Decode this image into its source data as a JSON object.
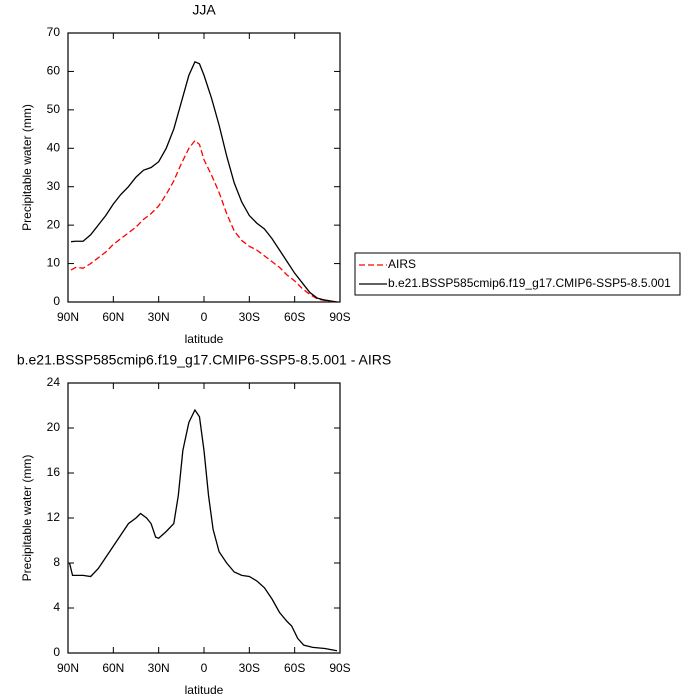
{
  "chart_data": [
    {
      "type": "line",
      "title": "JJA",
      "xlabel": "latitude",
      "ylabel": "Precipitable water (mm)",
      "x": [
        88,
        85,
        80,
        75,
        70,
        65,
        60,
        55,
        50,
        45,
        40,
        35,
        30,
        25,
        20,
        15,
        10,
        6,
        3,
        0,
        -5,
        -10,
        -15,
        -20,
        -25,
        -30,
        -35,
        -40,
        -45,
        -50,
        -55,
        -60,
        -65,
        -70,
        -75,
        -80,
        -85,
        -88
      ],
      "series": [
        {
          "name": "AIRS",
          "color": "#ff0000",
          "dash": "dashed",
          "values": [
            8.3,
            9,
            8.8,
            10,
            11.5,
            13,
            15,
            16.5,
            18,
            19.5,
            21.5,
            23,
            25,
            28,
            31.5,
            36,
            40,
            42,
            41,
            37,
            33,
            28.5,
            23,
            18.5,
            16,
            14.5,
            13.5,
            12,
            10.5,
            9,
            7,
            5.5,
            3.5,
            2,
            0.8,
            0.4,
            0.1,
            0
          ]
        },
        {
          "name": "b.e21.BSSP585cmip6.f19_g17.CMIP6-SSP5-8.5.001",
          "color": "#000000",
          "dash": "solid",
          "values": [
            15.7,
            15.8,
            15.8,
            17.5,
            20,
            22.5,
            25.5,
            28,
            30,
            32.5,
            34.3,
            35,
            36.5,
            40,
            45,
            52,
            59,
            62.5,
            62,
            59,
            53,
            46,
            38,
            31,
            26,
            22.5,
            20.5,
            19,
            16.5,
            13.5,
            10.5,
            7.5,
            5,
            2.5,
            1,
            0.5,
            0.2,
            0
          ]
        }
      ],
      "xlim": [
        90,
        -90
      ],
      "xticks": [
        {
          "value": 90,
          "label": "90N"
        },
        {
          "value": 60,
          "label": "60N"
        },
        {
          "value": 30,
          "label": "30N"
        },
        0,
        {
          "value": -30,
          "label": "30S"
        },
        {
          "value": -60,
          "label": "60S"
        },
        {
          "value": -90,
          "label": "90S"
        }
      ],
      "ylim": [
        0,
        70
      ],
      "yticks": [
        0,
        10,
        20,
        30,
        40,
        50,
        60,
        70
      ],
      "legend": "right"
    },
    {
      "type": "line",
      "title": "b.e21.BSSP585cmip6.f19_g17.CMIP6-SSP5-8.5.001 - AIRS",
      "xlabel": "latitude",
      "ylabel": "Precipitable water (mm)",
      "x": [
        89,
        87,
        80,
        75,
        70,
        65,
        60,
        55,
        50,
        45,
        42,
        38,
        35,
        32,
        30,
        25,
        20,
        17,
        14,
        10,
        6,
        3,
        0,
        -3,
        -6,
        -10,
        -15,
        -20,
        -25,
        -30,
        -35,
        -40,
        -45,
        -50,
        -55,
        -58,
        -62,
        -66,
        -72,
        -80,
        -88
      ],
      "series": [
        {
          "color": "#000000",
          "dash": "solid",
          "values": [
            8,
            6.9,
            6.9,
            6.8,
            7.5,
            8.5,
            9.5,
            10.5,
            11.5,
            12,
            12.4,
            12,
            11.5,
            10.3,
            10.2,
            10.8,
            11.5,
            14,
            18,
            20.5,
            21.6,
            21,
            18,
            14,
            11,
            9,
            8,
            7.2,
            6.9,
            6.8,
            6.4,
            5.8,
            4.8,
            3.6,
            2.8,
            2.4,
            1.3,
            0.7,
            0.5,
            0.4,
            0.2
          ]
        }
      ],
      "xlim": [
        90,
        -90
      ],
      "xticks": [
        {
          "value": 90,
          "label": "90N"
        },
        {
          "value": 60,
          "label": "60N"
        },
        {
          "value": 30,
          "label": "30N"
        },
        0,
        {
          "value": -30,
          "label": "30S"
        },
        {
          "value": -60,
          "label": "60S"
        },
        {
          "value": -90,
          "label": "90S"
        }
      ],
      "ylim": [
        0,
        24
      ],
      "yticks": [
        0,
        4,
        8,
        12,
        16,
        20,
        24
      ]
    }
  ]
}
